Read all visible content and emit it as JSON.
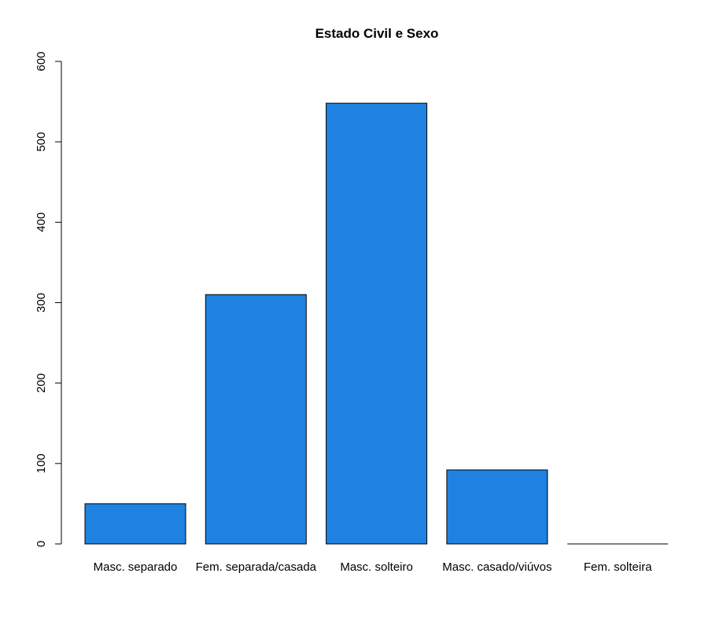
{
  "chart_data": {
    "type": "bar",
    "title": "Estado Civil e Sexo",
    "xlabel": "",
    "ylabel": "",
    "categories": [
      "Masc. separado",
      "Fem. separada/casada",
      "Masc. solteiro",
      "Masc. casado/viúvos",
      "Fem. solteira"
    ],
    "values": [
      50,
      310,
      548,
      92,
      0
    ],
    "ylim": [
      0,
      600
    ],
    "yticks": [
      "0",
      "100",
      "200",
      "300",
      "400",
      "500",
      "600"
    ],
    "grid": false,
    "legend": "none",
    "bar_color": "#1F82E0",
    "bar_border_color": "#000000"
  }
}
